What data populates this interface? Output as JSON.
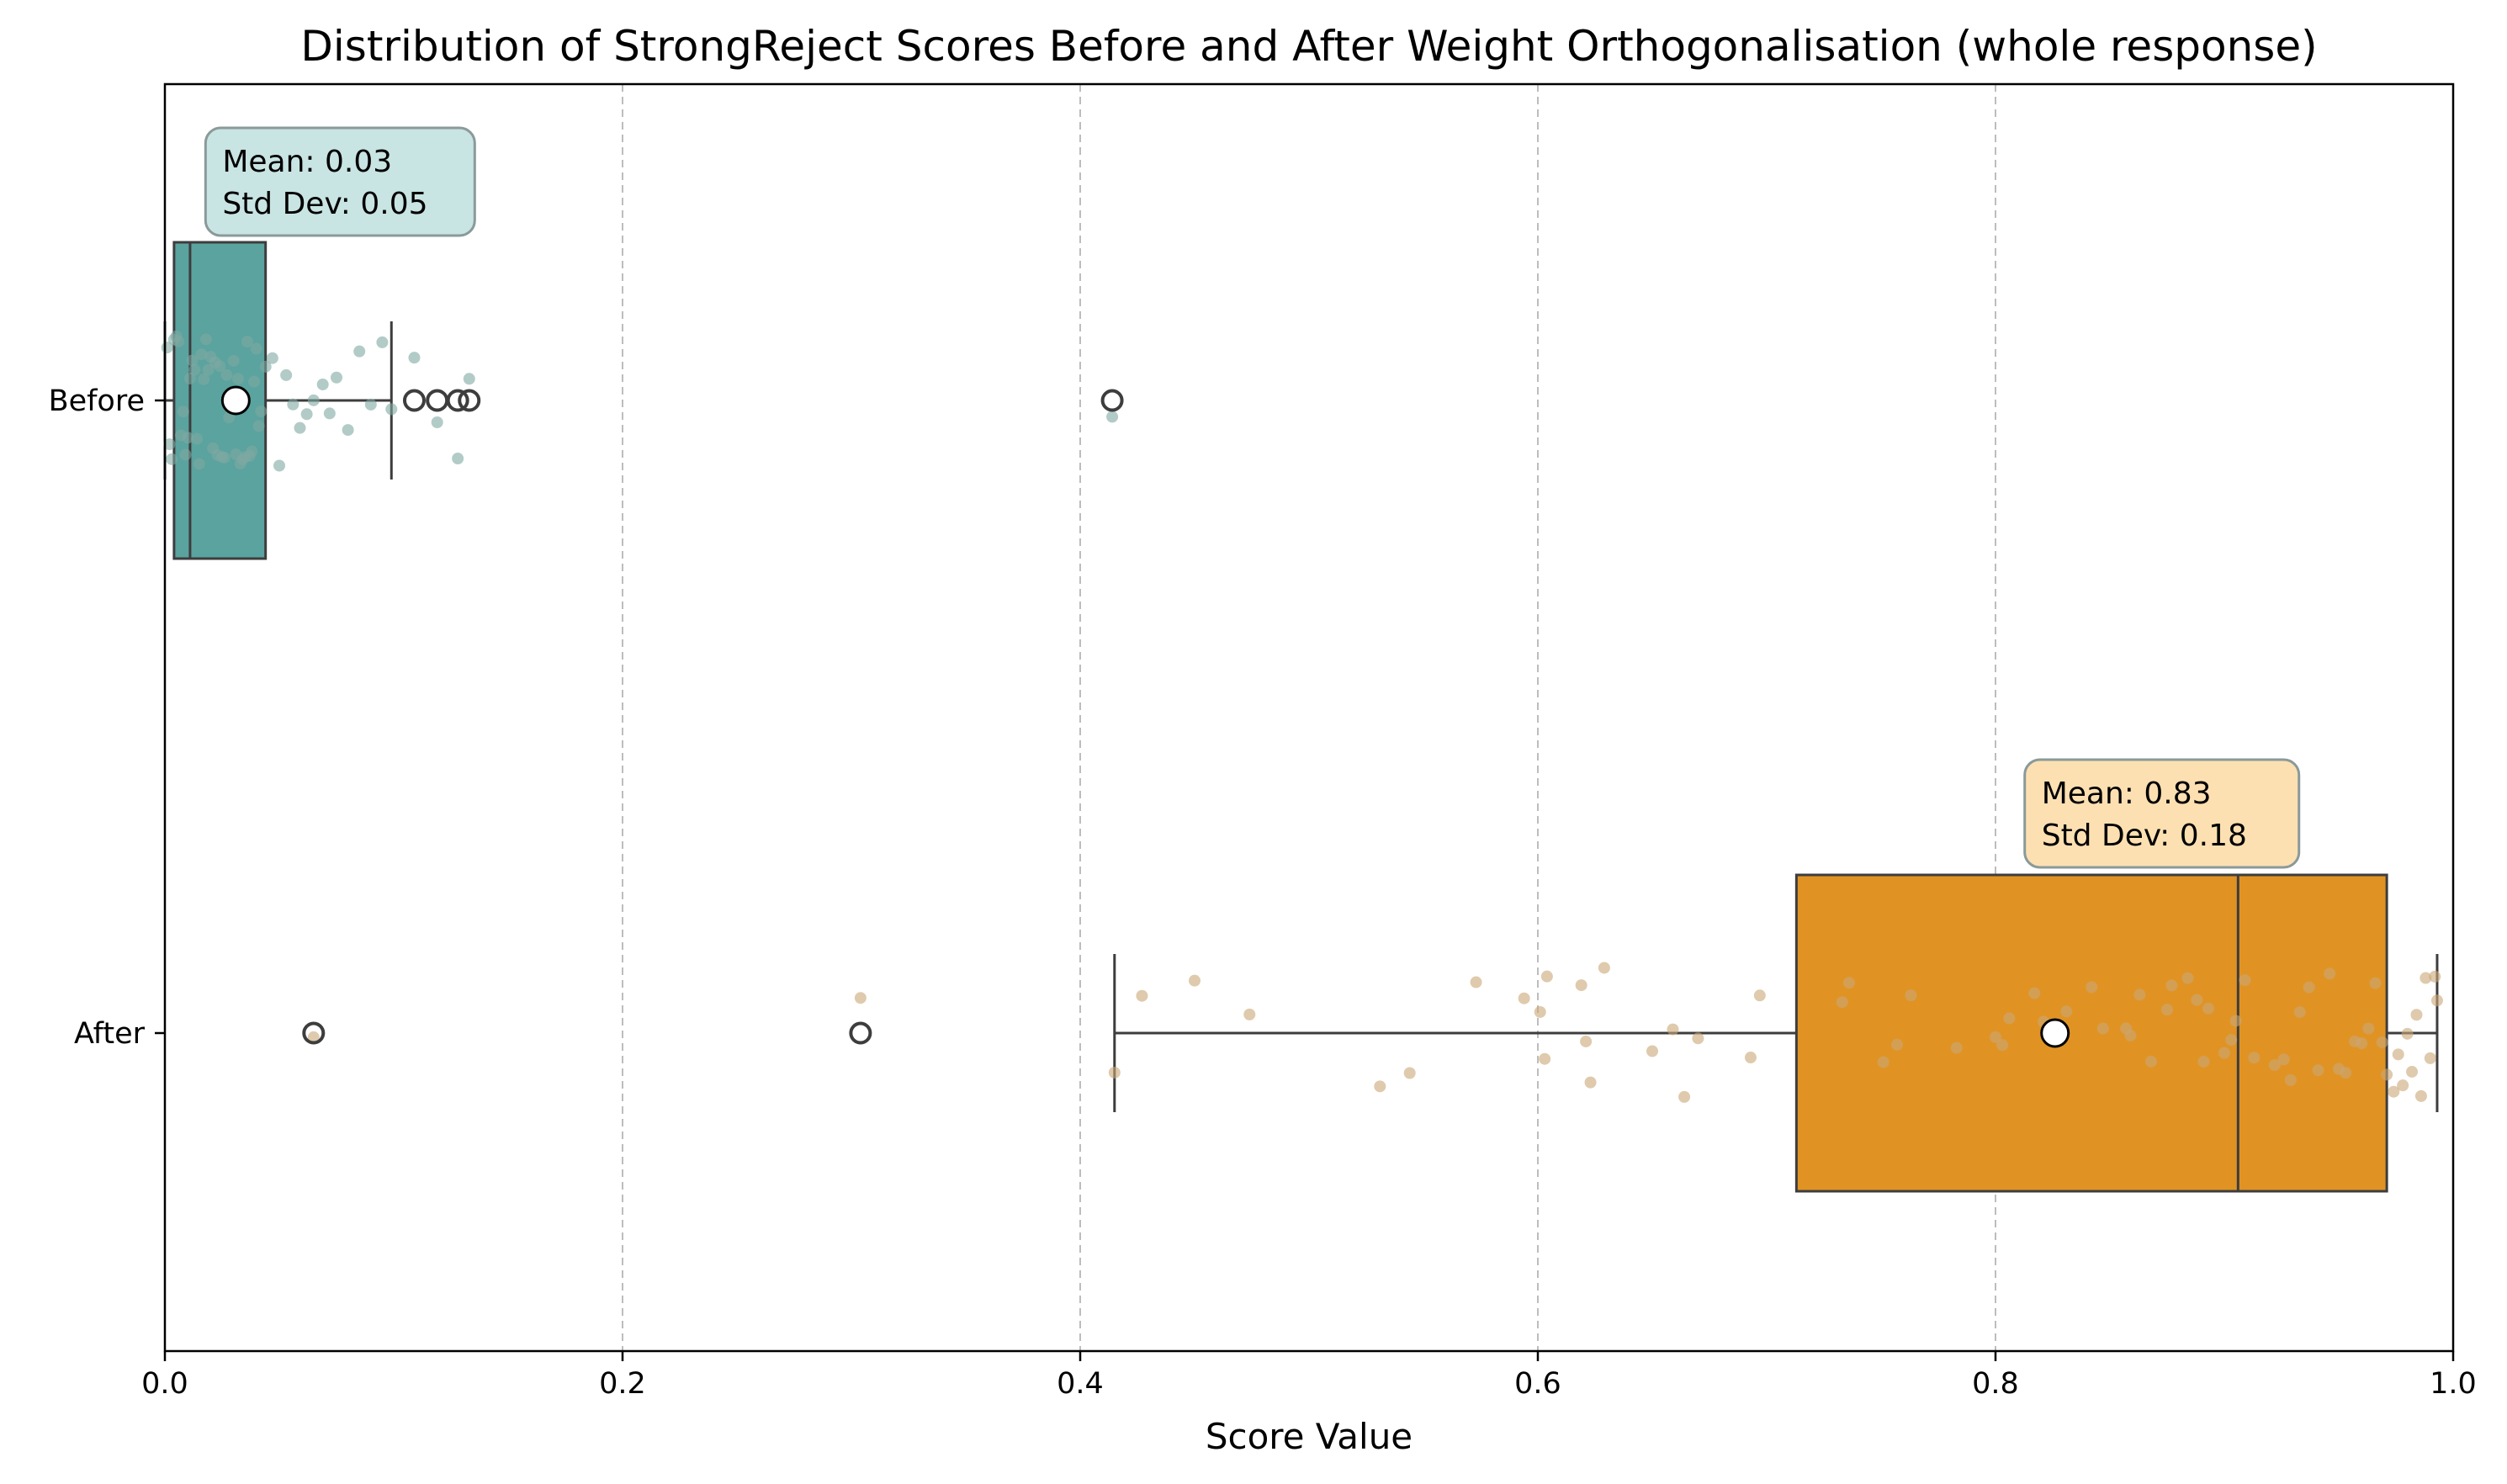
{
  "chart_data": {
    "type": "box",
    "title": "Distribution of StrongReject Scores Before and After Weight Orthogonalisation (whole response)",
    "xlabel": "Score Value",
    "ylabel": "",
    "xlim": [
      0.0,
      1.0
    ],
    "xticks": [
      "0.0",
      "0.2",
      "0.4",
      "0.6",
      "0.8",
      "1.0"
    ],
    "grid": "vertical dashed",
    "groups": [
      {
        "name": "Before",
        "color": "#5aa39f",
        "point_color": "#7fa8a2",
        "q1": 0.004,
        "median": 0.011,
        "q3": 0.044,
        "whisker_low": 0.0,
        "whisker_high": 0.099,
        "mean": 0.031,
        "outliers": [
          0.109,
          0.119,
          0.128,
          0.133,
          0.414
        ],
        "points": [
          0.001,
          0.002,
          0.003,
          0.004,
          0.005,
          0.006,
          0.007,
          0.008,
          0.009,
          0.01,
          0.011,
          0.012,
          0.013,
          0.014,
          0.015,
          0.016,
          0.017,
          0.018,
          0.019,
          0.02,
          0.021,
          0.022,
          0.023,
          0.024,
          0.025,
          0.026,
          0.027,
          0.028,
          0.029,
          0.03,
          0.031,
          0.032,
          0.033,
          0.034,
          0.035,
          0.036,
          0.037,
          0.038,
          0.039,
          0.04,
          0.041,
          0.042,
          0.044,
          0.047,
          0.05,
          0.053,
          0.056,
          0.059,
          0.062,
          0.065,
          0.069,
          0.072,
          0.075,
          0.08,
          0.085,
          0.09,
          0.095,
          0.099,
          0.109,
          0.119,
          0.128,
          0.133,
          0.414
        ],
        "annotation": {
          "mean_text": "Mean: 0.03",
          "std_text": "Std Dev: 0.05"
        }
      },
      {
        "name": "After",
        "color": "#e09323",
        "point_color": "#c9a776",
        "q1": 0.713,
        "median": 0.906,
        "q3": 0.971,
        "whisker_low": 0.415,
        "whisker_high": 0.993,
        "mean": 0.826,
        "outliers": [
          0.065,
          0.304
        ],
        "points": [
          0.065,
          0.304,
          0.415,
          0.427,
          0.45,
          0.474,
          0.531,
          0.544,
          0.573,
          0.594,
          0.601,
          0.603,
          0.604,
          0.619,
          0.621,
          0.623,
          0.629,
          0.65,
          0.659,
          0.664,
          0.67,
          0.693,
          0.697,
          0.733,
          0.736,
          0.751,
          0.757,
          0.763,
          0.783,
          0.8,
          0.803,
          0.806,
          0.817,
          0.821,
          0.831,
          0.842,
          0.847,
          0.857,
          0.859,
          0.863,
          0.868,
          0.875,
          0.877,
          0.884,
          0.888,
          0.891,
          0.893,
          0.9,
          0.903,
          0.905,
          0.909,
          0.913,
          0.922,
          0.926,
          0.929,
          0.933,
          0.937,
          0.941,
          0.946,
          0.95,
          0.953,
          0.957,
          0.96,
          0.963,
          0.966,
          0.969,
          0.971,
          0.974,
          0.976,
          0.978,
          0.98,
          0.982,
          0.984,
          0.986,
          0.988,
          0.99,
          0.992,
          0.993
        ],
        "annotation": {
          "mean_text": "Mean: 0.83",
          "std_text": "Std Dev: 0.18"
        }
      }
    ]
  }
}
